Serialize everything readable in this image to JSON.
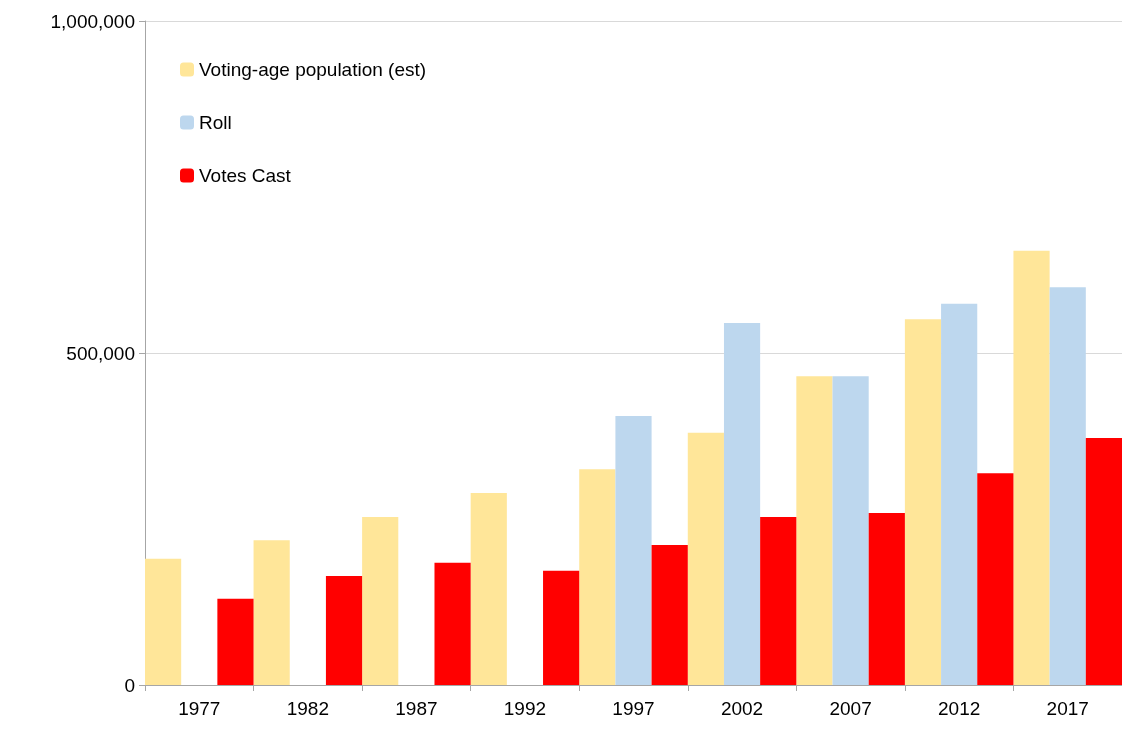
{
  "chart_data": {
    "type": "bar",
    "categories": [
      "1977",
      "1982",
      "1987",
      "1992",
      "1997",
      "2002",
      "2007",
      "2012",
      "2017"
    ],
    "series": [
      {
        "name": "Voting-age population (est)",
        "color": "#ffe699",
        "values": [
          190000,
          218000,
          253000,
          289000,
          325000,
          380000,
          465000,
          551000,
          654000
        ]
      },
      {
        "name": "Roll",
        "color": "#bdd7ee",
        "values": [
          null,
          null,
          null,
          null,
          405000,
          545000,
          465000,
          574000,
          599000
        ]
      },
      {
        "name": "Votes Cast",
        "color": "#ff0000",
        "values": [
          130000,
          164000,
          184000,
          172000,
          211000,
          253000,
          259000,
          319000,
          372000
        ]
      }
    ],
    "ylim": [
      0,
      1000000
    ],
    "yticks": [
      0,
      {
        "value": 500000,
        "label": "500,000"
      },
      {
        "value": 1000000,
        "label": "1,000,000"
      }
    ],
    "grid": "y",
    "legend": "top left"
  }
}
